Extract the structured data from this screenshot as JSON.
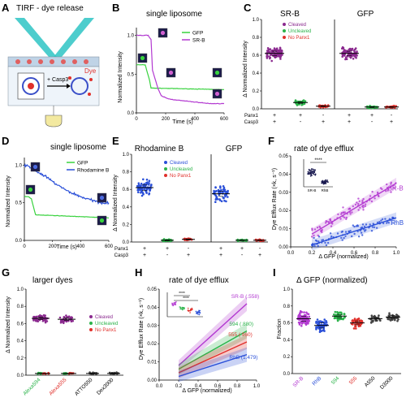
{
  "panels": {
    "A": {
      "letter": "A",
      "title": "TIRF - dye release",
      "label_casp3": "+ Casp3",
      "label_dye": "Dye"
    },
    "B": {
      "letter": "B",
      "title": "single liposome",
      "xlabel": "Time (s)",
      "ylabel": "Normalized Intensity",
      "legend": [
        "GFP",
        "SR-B"
      ],
      "yticks": [
        "1.0",
        "0.5",
        "0.0"
      ],
      "xticks": [
        "0",
        "200",
        "400",
        "600"
      ]
    },
    "C": {
      "letter": "C",
      "title_left": "SR-B",
      "title_right": "GFP",
      "ylabel": "Δ Normalized Intensity",
      "yticks": [
        "1.0",
        "0.8",
        "0.6",
        "0.4",
        "0.2",
        "0.0"
      ],
      "legend": [
        "Cleaved",
        "Uncleaved",
        "No Panx1"
      ],
      "row1": "Panx1",
      "row2": "Casp3",
      "signs1": [
        "+",
        "+",
        "-",
        "+",
        "+",
        "-"
      ],
      "signs2": [
        "+",
        "-",
        "+",
        "+",
        "-",
        "+"
      ]
    },
    "D": {
      "letter": "D",
      "title": "single liposome",
      "xlabel": "Time (s)",
      "ylabel": "Normalized Intensity",
      "legend": [
        "GFP",
        "Rhodamine B"
      ],
      "yticks": [
        "1.0",
        "0.5",
        "0.0"
      ],
      "xticks": [
        "0",
        "200",
        "400",
        "600"
      ]
    },
    "E": {
      "letter": "E",
      "title_left": "Rhodamine B",
      "title_right": "GFP",
      "ylabel": "Δ Normalized Intensity",
      "yticks": [
        "1.0",
        "0.8",
        "0.6",
        "0.4",
        "0.2",
        "0.0"
      ],
      "legend": [
        "Cleaved",
        "Uncleaved",
        "No Panx1"
      ],
      "row1": "Panx1",
      "row2": "Casp3",
      "signs1": [
        "+",
        "+",
        "-",
        "+",
        "+",
        "-"
      ],
      "signs2": [
        "+",
        "-",
        "+",
        "+",
        "-",
        "+"
      ]
    },
    "F": {
      "letter": "F",
      "title": "rate of dye efflux",
      "xlabel": "Δ GFP (normalized)",
      "ylabel": "Dye Efflux Rate (×k, s⁻¹)",
      "yticks": [
        "0.05",
        "0.04",
        "0.03",
        "0.02",
        "0.01",
        "0.00"
      ],
      "xticks": [
        "0.0",
        "0.2",
        "0.4",
        "0.6",
        "0.8",
        "1.0"
      ],
      "label_srb": "SR-B",
      "label_rhb": "RhB",
      "inset_sig": "****",
      "inset_x": [
        "SR-B",
        "RhB"
      ]
    },
    "G": {
      "letter": "G",
      "title": "larger dyes",
      "ylabel": "Δ Normalized Intensity",
      "yticks": [
        "1.0",
        "0.8",
        "0.6",
        "0.4",
        "0.2",
        "0.0"
      ],
      "legend": [
        "Cleaved",
        "Uncleaved",
        "No Panx1"
      ],
      "xcats": [
        "Alexa594",
        "Alexa555",
        "ATTO550",
        "Dex3000"
      ]
    },
    "H": {
      "letter": "H",
      "title": "rate of dye efflux",
      "xlabel": "Δ GFP (normalized)",
      "ylabel": "Dye Efflux Rate (×k, s⁻¹)",
      "yticks": [
        "0.05",
        "0.04",
        "0.03",
        "0.02",
        "0.01",
        "0.00"
      ],
      "xticks": [
        "0.0",
        "0.2",
        "0.4",
        "0.6",
        "0.8",
        "1.0"
      ],
      "labels": [
        "SR-B (.558)",
        "594 (.880)",
        "555 (.960)",
        "RhB (1.479)"
      ],
      "inset_sig": [
        "****",
        "****"
      ]
    },
    "I": {
      "letter": "I",
      "title": "Δ GFP (normalized)",
      "ylabel": "Fraction",
      "yticks": [
        "1.0",
        "0.8",
        "0.6",
        "0.4",
        "0.2",
        "0.0"
      ],
      "xcats": [
        "SR-B",
        "RhB",
        "594",
        "555",
        "A550",
        "D3000"
      ]
    }
  },
  "colors": {
    "cleaved": "#8b2a8f",
    "uncleaved": "#2bb34a",
    "nopanx1": "#e0302b",
    "srb": "#b33ad1",
    "rhb": "#2a4fd8",
    "gfp": "#38d23e",
    "a594": "#2bb34a",
    "a555": "#e0302b",
    "atto": "#444444"
  },
  "chart_data": [
    {
      "panel": "B",
      "type": "line",
      "title": "single liposome",
      "xlabel": "Time (s)",
      "ylabel": "Normalized Intensity",
      "xlim": [
        0,
        600
      ],
      "ylim": [
        0,
        1.1
      ],
      "series": [
        {
          "name": "GFP",
          "x": [
            0,
            40,
            60,
            90,
            100,
            600
          ],
          "y": [
            0.62,
            0.62,
            0.62,
            0.42,
            0.32,
            0.3
          ]
        },
        {
          "name": "SR-B",
          "x": [
            0,
            80,
            100,
            110,
            150,
            170,
            220,
            300,
            400,
            500,
            600
          ],
          "y": [
            1.0,
            1.0,
            0.95,
            0.55,
            0.3,
            0.22,
            0.18,
            0.16,
            0.14,
            0.12,
            0.12
          ]
        }
      ]
    },
    {
      "panel": "D",
      "type": "line",
      "title": "single liposome",
      "xlabel": "Time (s)",
      "ylabel": "Normalized Intensity",
      "xlim": [
        0,
        600
      ],
      "ylim": [
        0,
        1.1
      ],
      "series": [
        {
          "name": "GFP",
          "x": [
            0,
            30,
            50,
            80,
            600
          ],
          "y": [
            0.58,
            0.58,
            0.55,
            0.34,
            0.3
          ]
        },
        {
          "name": "Rhodamine B",
          "x": [
            0,
            30,
            60,
            100,
            150,
            200,
            250,
            300,
            350,
            400,
            450,
            500,
            550,
            600
          ],
          "y": [
            1.0,
            0.98,
            0.95,
            0.9,
            0.85,
            0.78,
            0.72,
            0.66,
            0.62,
            0.58,
            0.55,
            0.52,
            0.5,
            0.5
          ]
        }
      ]
    },
    {
      "panel": "C",
      "type": "scatter",
      "ylabel": "Δ Normalized Intensity",
      "ylim": [
        0,
        1.0
      ],
      "categories": [
        "SR-B ++",
        "SR-B +-",
        "SR-B -+",
        "GFP ++",
        "GFP +-",
        "GFP -+"
      ],
      "medians": [
        0.62,
        0.07,
        0.03,
        0.62,
        0.02,
        0.02
      ]
    },
    {
      "panel": "E",
      "type": "scatter",
      "ylabel": "Δ Normalized Intensity",
      "ylim": [
        0,
        1.0
      ],
      "categories": [
        "RhB ++",
        "RhB +-",
        "RhB -+",
        "GFP ++",
        "GFP +-",
        "GFP -+"
      ],
      "medians": [
        0.62,
        0.02,
        0.03,
        0.55,
        0.02,
        0.02
      ]
    },
    {
      "panel": "F",
      "type": "scatter",
      "xlabel": "Δ GFP (normalized)",
      "ylabel": "Dye Efflux Rate (×k, s⁻¹)",
      "xlim": [
        0,
        1.0
      ],
      "ylim": [
        0,
        0.05
      ],
      "series": [
        {
          "name": "SR-B",
          "fit": [
            [
              0.2,
              0.007
            ],
            [
              1.0,
              0.035
            ]
          ]
        },
        {
          "name": "RhB",
          "fit": [
            [
              0.2,
              0.001
            ],
            [
              1.0,
              0.016
            ]
          ]
        }
      ]
    },
    {
      "panel": "G",
      "type": "scatter",
      "ylabel": "Δ Normalized Intensity",
      "ylim": [
        0,
        1.0
      ],
      "categories": [
        "Alexa594",
        "Alexa555",
        "ATTO550",
        "Dex3000"
      ],
      "medians": [
        0.66,
        0.65,
        0.02,
        0.02
      ]
    },
    {
      "panel": "H",
      "type": "line",
      "xlabel": "Δ GFP (normalized)",
      "ylabel": "Dye Efflux Rate (×k, s⁻¹)",
      "xlim": [
        0,
        1.0
      ],
      "ylim": [
        0,
        0.05
      ],
      "series": [
        {
          "name": "SR-B (.558)",
          "fit": [
            [
              0.2,
              0.008
            ],
            [
              0.9,
              0.042
            ]
          ]
        },
        {
          "name": "594 (.880)",
          "fit": [
            [
              0.2,
              0.006
            ],
            [
              0.9,
              0.027
            ]
          ]
        },
        {
          "name": "555 (.960)",
          "fit": [
            [
              0.2,
              0.004
            ],
            [
              0.9,
              0.021
            ]
          ]
        },
        {
          "name": "RhB (1.479)",
          "fit": [
            [
              0.2,
              0.002
            ],
            [
              0.9,
              0.014
            ]
          ]
        }
      ]
    },
    {
      "panel": "I",
      "type": "scatter",
      "title": "Δ GFP (normalized)",
      "ylabel": "Fraction",
      "ylim": [
        0,
        1.0
      ],
      "categories": [
        "SR-B",
        "RhB",
        "594",
        "555",
        "A550",
        "D3000"
      ],
      "medians": [
        0.65,
        0.57,
        0.68,
        0.6,
        0.65,
        0.67
      ]
    }
  ]
}
